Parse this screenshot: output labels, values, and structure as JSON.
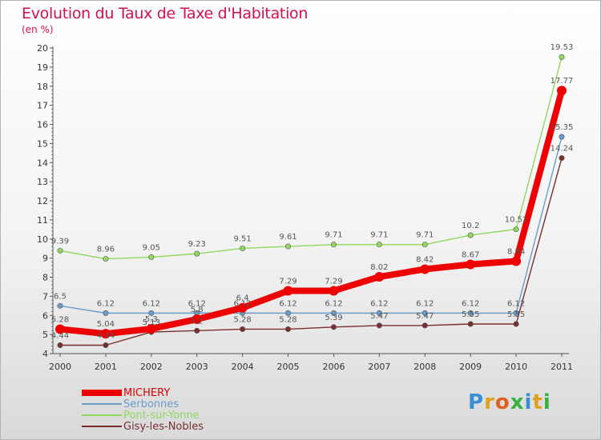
{
  "title": "Evolution du Taux de Taxe d'Habitation",
  "subtitle": "(en %)",
  "logo": {
    "letters": [
      "P",
      "r",
      "o",
      "x",
      "i",
      "t",
      "i"
    ],
    "colors": [
      "#3a8ed6",
      "#e0a020",
      "#e06020",
      "#3ab040",
      "#3a8ed6",
      "#e0a020",
      "#3ab040"
    ]
  },
  "chart_data": {
    "type": "line",
    "title": "Evolution du Taux de Taxe d'Habitation",
    "ylabel": "(en %)",
    "xlabel": "",
    "x": [
      "2000",
      "2001",
      "2002",
      "2003",
      "2004",
      "2005",
      "2006",
      "2007",
      "2008",
      "2009",
      "2010",
      "2011"
    ],
    "yticks": [
      "4",
      "5",
      "6",
      "7",
      "8",
      "9",
      "10",
      "11",
      "12",
      "13",
      "14",
      "15",
      "16",
      "17",
      "18",
      "19",
      "20"
    ],
    "ylim": [
      4,
      20
    ],
    "grid": false,
    "legend": "bottom-left",
    "series": [
      {
        "name": "MICHERY",
        "color": "#ee0000",
        "values": [
          5.28,
          5.04,
          5.3,
          5.8,
          6.4,
          7.29,
          7.29,
          8.02,
          8.42,
          8.67,
          8.84,
          17.77
        ],
        "labels": [
          "5.28",
          "5.04",
          "5.3",
          "5.8",
          "6.4",
          "7.29",
          "7.29",
          "8.02",
          "8.42",
          "8.67",
          "8.84",
          "17.77"
        ]
      },
      {
        "name": "Serbonnes",
        "color": "#6a9cc8",
        "values": [
          6.5,
          6.12,
          6.12,
          6.12,
          6.12,
          6.12,
          6.12,
          6.12,
          6.12,
          6.12,
          6.12,
          15.35
        ],
        "labels": [
          "6.5",
          "6.12",
          "6.12",
          "6.12",
          "6.12",
          "6.12",
          "6.12",
          "6.12",
          "6.12",
          "6.12",
          "6.12",
          "15.35"
        ]
      },
      {
        "name": "Pont-sur-Yonne",
        "color": "#90d860",
        "values": [
          9.39,
          8.96,
          9.05,
          9.23,
          9.51,
          9.61,
          9.71,
          9.71,
          9.71,
          10.2,
          10.51,
          19.53
        ],
        "labels": [
          "9.39",
          "8.96",
          "9.05",
          "9.23",
          "9.51",
          "9.61",
          "9.71",
          "9.71",
          "9.71",
          "10.2",
          "10.51",
          "19.53"
        ]
      },
      {
        "name": "Gisy-les-Nobles",
        "color": "#7a2e2e",
        "values": [
          4.44,
          4.44,
          5.13,
          5.2,
          5.28,
          5.28,
          5.39,
          5.47,
          5.47,
          5.55,
          5.55,
          14.24
        ],
        "labels": [
          "4.44",
          "4.44",
          "5.13",
          "5.2",
          "5.28",
          "5.28",
          "5.39",
          "5.47",
          "5.47",
          "5.55",
          "5.55",
          "14.24"
        ]
      }
    ]
  }
}
